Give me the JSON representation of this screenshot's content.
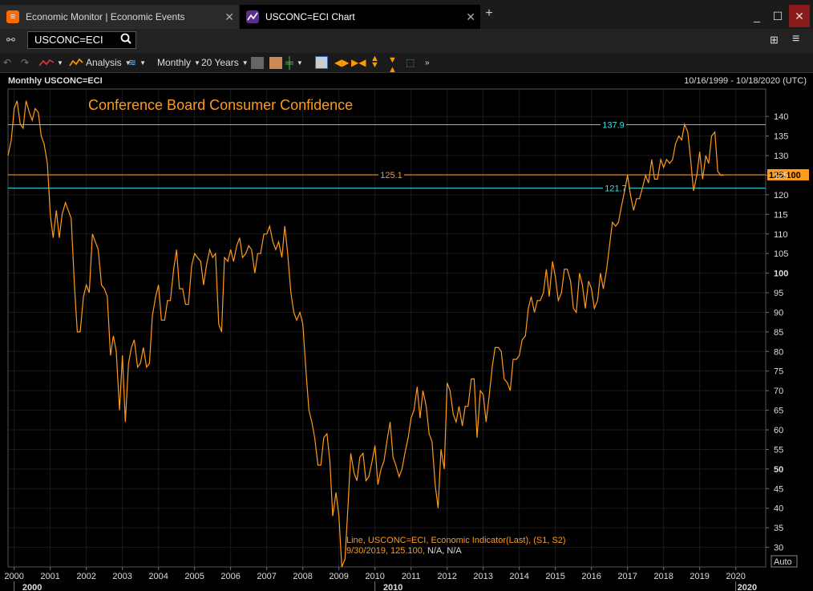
{
  "tabs": [
    {
      "label": "Economic Monitor | Economic Events"
    },
    {
      "label": "USCONC=ECI Chart"
    }
  ],
  "command_input": "USCONC=ECI",
  "toolbar": {
    "analysis_label": "Analysis",
    "interval_label": "Monthly",
    "period_label": "20 Years"
  },
  "chart_header": {
    "title": "Monthly USCONC=ECI",
    "date_range": "10/16/1999 - 10/18/2020 (UTC)"
  },
  "legend": {
    "line1": "Line, USCONC=ECI, Economic Indicator(Last), (S1, S2)",
    "line2_value": "9/30/2019, 125.100,",
    "line2_na": "N/A, N/A"
  },
  "auto_button": "Auto",
  "colors": {
    "series": "#ff9a1a",
    "hline_cyan": "#34e0e6",
    "hline_orange": "#ff9a1a",
    "title": "#ff9a1a"
  },
  "chart_data": {
    "type": "line",
    "title": "Conference Board Consumer Confidence",
    "xlabel": "",
    "ylabel": "",
    "xlim": [
      1999.83,
      2020.83
    ],
    "ylim": [
      25,
      147
    ],
    "y_ticks": [
      30,
      35,
      40,
      45,
      50,
      55,
      60,
      65,
      70,
      75,
      80,
      85,
      90,
      95,
      100,
      105,
      110,
      115,
      120,
      125,
      130,
      135,
      140
    ],
    "x_ticks": [
      "2000",
      "2001",
      "2002",
      "2003",
      "2004",
      "2005",
      "2006",
      "2007",
      "2008",
      "2009",
      "2010",
      "2011",
      "2012",
      "2013",
      "2014",
      "2015",
      "2016",
      "2017",
      "2018",
      "2019",
      "2020"
    ],
    "x_major_labels": [
      "2000",
      "2010",
      "2020"
    ],
    "last_value_label": "125.100",
    "horizontal_lines": [
      {
        "value": 137.9,
        "label": "137.9",
        "color": "cyan"
      },
      {
        "value": 125.1,
        "label": "125.1",
        "color": "orange"
      },
      {
        "value": 121.7,
        "label": "121.7",
        "color": "cyan"
      }
    ],
    "series": [
      {
        "x": [
          1999.83,
          1999.92,
          2000.0,
          2000.08,
          2000.17,
          2000.25,
          2000.33,
          2000.42,
          2000.5,
          2000.58,
          2000.67,
          2000.75,
          2000.83,
          2000.92,
          2001.0,
          2001.08,
          2001.17,
          2001.25,
          2001.33,
          2001.42,
          2001.5,
          2001.58,
          2001.67,
          2001.75,
          2001.83,
          2001.92,
          2002.0,
          2002.08,
          2002.17,
          2002.25,
          2002.33,
          2002.42,
          2002.5,
          2002.58,
          2002.67,
          2002.75,
          2002.83,
          2002.92,
          2003.0,
          2003.08,
          2003.17,
          2003.25,
          2003.33,
          2003.42,
          2003.5,
          2003.58,
          2003.67,
          2003.75,
          2003.83,
          2003.92,
          2004.0,
          2004.08,
          2004.17,
          2004.25,
          2004.33,
          2004.42,
          2004.5,
          2004.58,
          2004.67,
          2004.75,
          2004.83,
          2004.92,
          2005.0,
          2005.08,
          2005.17,
          2005.25,
          2005.33,
          2005.42,
          2005.5,
          2005.58,
          2005.67,
          2005.75,
          2005.83,
          2005.92,
          2006.0,
          2006.08,
          2006.17,
          2006.25,
          2006.33,
          2006.42,
          2006.5,
          2006.58,
          2006.67,
          2006.75,
          2006.83,
          2006.92,
          2007.0,
          2007.08,
          2007.17,
          2007.25,
          2007.33,
          2007.42,
          2007.5,
          2007.58,
          2007.67,
          2007.75,
          2007.83,
          2007.92,
          2008.0,
          2008.08,
          2008.17,
          2008.25,
          2008.33,
          2008.42,
          2008.5,
          2008.58,
          2008.67,
          2008.75,
          2008.83,
          2008.92,
          2009.0,
          2009.08,
          2009.17,
          2009.25,
          2009.33,
          2009.42,
          2009.5,
          2009.58,
          2009.67,
          2009.75,
          2009.83,
          2009.92,
          2010.0,
          2010.08,
          2010.17,
          2010.25,
          2010.33,
          2010.42,
          2010.5,
          2010.58,
          2010.67,
          2010.75,
          2010.83,
          2010.92,
          2011.0,
          2011.08,
          2011.17,
          2011.25,
          2011.33,
          2011.42,
          2011.5,
          2011.58,
          2011.67,
          2011.75,
          2011.83,
          2011.92,
          2012.0,
          2012.08,
          2012.17,
          2012.25,
          2012.33,
          2012.42,
          2012.5,
          2012.58,
          2012.67,
          2012.75,
          2012.83,
          2012.92,
          2013.0,
          2013.08,
          2013.17,
          2013.25,
          2013.33,
          2013.42,
          2013.5,
          2013.58,
          2013.67,
          2013.75,
          2013.83,
          2013.92,
          2014.0,
          2014.08,
          2014.17,
          2014.25,
          2014.33,
          2014.42,
          2014.5,
          2014.58,
          2014.67,
          2014.75,
          2014.83,
          2014.92,
          2015.0,
          2015.08,
          2015.17,
          2015.25,
          2015.33,
          2015.42,
          2015.5,
          2015.58,
          2015.67,
          2015.75,
          2015.83,
          2015.92,
          2016.0,
          2016.08,
          2016.17,
          2016.25,
          2016.33,
          2016.42,
          2016.5,
          2016.58,
          2016.67,
          2016.75,
          2016.83,
          2016.92,
          2017.0,
          2017.08,
          2017.17,
          2017.25,
          2017.33,
          2017.42,
          2017.5,
          2017.58,
          2017.67,
          2017.75,
          2017.83,
          2017.92,
          2018.0,
          2018.08,
          2018.17,
          2018.25,
          2018.33,
          2018.42,
          2018.5,
          2018.58,
          2018.67,
          2018.75,
          2018.83,
          2018.92,
          2019.0,
          2019.08,
          2019.17,
          2019.25,
          2019.33,
          2019.42,
          2019.5,
          2019.58,
          2019.67
        ],
        "values": [
          130,
          134,
          142,
          144,
          138,
          137,
          144,
          141,
          139,
          142,
          141,
          135,
          133,
          128,
          115,
          109,
          116,
          109,
          115,
          118,
          116,
          114,
          97,
          85,
          85,
          94,
          97,
          95,
          110,
          108,
          106,
          97,
          96,
          94,
          79,
          84,
          80,
          65,
          79,
          62,
          77,
          81,
          83,
          76,
          77,
          81,
          76,
          77,
          89,
          94,
          97,
          88,
          88,
          93,
          93,
          101,
          106,
          96,
          96,
          92,
          92,
          102,
          105,
          104,
          103,
          97,
          102,
          106,
          104,
          105,
          87,
          85,
          104,
          103,
          106,
          103,
          107,
          109,
          104,
          105,
          107,
          106,
          100,
          105,
          105,
          110,
          110,
          112,
          108,
          106,
          108,
          104,
          112,
          105,
          95,
          90,
          88,
          90,
          87,
          76,
          65,
          62,
          58,
          51,
          51,
          58,
          59,
          52,
          38,
          44,
          38,
          25,
          27,
          40,
          54,
          49,
          47,
          53,
          54,
          47,
          48,
          52,
          56,
          46,
          50,
          52,
          57,
          62,
          53,
          51,
          48,
          50,
          54,
          58,
          63,
          65,
          71,
          63,
          70,
          66,
          59,
          57,
          46,
          40,
          55,
          50,
          72,
          70,
          64,
          62,
          66,
          61,
          66,
          66,
          73,
          73,
          58,
          70,
          69,
          62,
          69,
          76,
          81,
          81,
          80,
          73,
          72,
          70,
          78,
          78,
          79,
          83,
          84,
          91,
          94,
          90,
          93,
          93,
          95,
          101,
          94,
          103,
          99,
          93,
          95,
          101,
          101,
          98,
          91,
          90,
          100,
          97,
          91,
          98,
          96,
          91,
          93,
          100,
          96,
          101,
          107,
          113,
          112,
          113,
          117,
          121,
          125,
          120,
          116,
          119,
          119,
          122,
          125,
          123,
          129,
          124,
          124,
          129,
          127,
          129,
          128,
          129,
          133,
          135,
          134,
          138,
          136,
          129,
          121,
          125,
          131,
          124,
          130,
          128,
          135,
          136,
          126,
          125,
          125
        ]
      }
    ]
  }
}
